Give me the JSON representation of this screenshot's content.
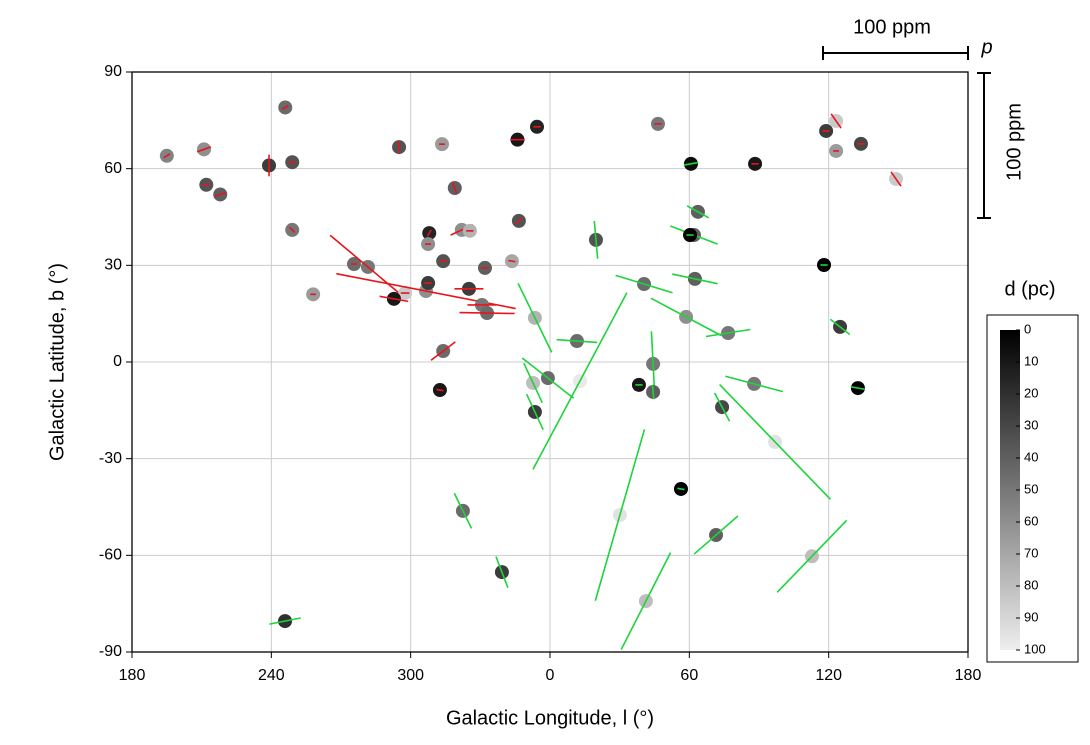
{
  "chart_data": {
    "type": "scatter",
    "xlabel": "Galactic Longitude, l (°)",
    "ylabel": "Galactic Latitude, b (°)",
    "xlim": [
      -180,
      180
    ],
    "ylim": [
      -90,
      90
    ],
    "xticks": [
      {
        "value": -180,
        "label": "180"
      },
      {
        "value": -120,
        "label": "240"
      },
      {
        "value": -60,
        "label": "300"
      },
      0,
      60,
      120,
      180
    ],
    "yticks": [
      -90,
      -60,
      -30,
      0,
      30,
      60,
      90
    ],
    "grid": true,
    "series": [
      {
        "color": "#e8141b",
        "x": [
          -165,
          -149,
          -148,
          -142,
          -121,
          -114,
          -111,
          -111,
          -102,
          -65,
          -46.5,
          -41,
          -52,
          -52.5,
          -38,
          -34.5,
          -14,
          -5.6,
          -13.4,
          -46,
          -16.4,
          -84.4,
          -78.4,
          -62.4,
          -67.2,
          -53.4,
          -52.5,
          -34.9,
          -28,
          -29.3,
          -27.1,
          -46,
          -47.4,
          88.3,
          118.9,
          123.2,
          123.2,
          133.9,
          149,
          46.5
        ],
        "y": [
          64,
          66,
          55,
          52,
          61,
          79,
          62,
          41,
          21,
          66.7,
          67.6,
          54,
          40,
          36.6,
          41,
          40.7,
          69,
          73,
          43.8,
          31.3,
          31.3,
          30.4,
          29.5,
          21.4,
          19.6,
          22,
          24.5,
          22.7,
          29.2,
          17.7,
          15.2,
          3.4,
          -8.7,
          61.5,
          71.7,
          74.8,
          65.5,
          67.7,
          56.8,
          73.9
        ],
        "d": [
          55,
          60,
          35,
          40,
          25,
          45,
          35,
          50,
          65,
          35,
          65,
          40,
          15,
          60,
          60,
          75,
          10,
          15,
          35,
          35,
          70,
          45,
          50,
          85,
          10,
          60,
          25,
          25,
          40,
          50,
          45,
          45,
          10,
          10,
          25,
          85,
          65,
          30,
          85,
          50
        ],
        "p": [
          5,
          10,
          5,
          8,
          15,
          5,
          5,
          5,
          4,
          8,
          4,
          8,
          5,
          4,
          17,
          5,
          10,
          5,
          6,
          5,
          5,
          4,
          68,
          6,
          20,
          126,
          5,
          20,
          5,
          20,
          38,
          21,
          5,
          5,
          5,
          12,
          4,
          5,
          12,
          5
        ],
        "pa": [
          60,
          70,
          80,
          70,
          0,
          60,
          90,
          135,
          90,
          0,
          90,
          160,
          30,
          90,
          65,
          90,
          90,
          90,
          45,
          90,
          100,
          90,
          130,
          90,
          100,
          101,
          90,
          90,
          90,
          90,
          91,
          53,
          100,
          90,
          90,
          145,
          90,
          90,
          145,
          90
        ]
      },
      {
        "color": "#1dd43c",
        "x": [
          -114.1,
          -6.5,
          11.6,
          -0.9,
          -7.3,
          -6.5,
          19.8,
          60.7,
          63.7,
          62,
          60.3,
          62.4,
          40.5,
          58.6,
          76.7,
          44.4,
          38.3,
          44.4,
          74.1,
          87.9,
          56.4,
          71.5,
          112.8,
          96.9,
          30.1,
          41.3,
          12.9,
          -37.5,
          -20.7,
          118,
          124.9,
          132.6
        ],
        "y": [
          -80.4,
          13.7,
          6.5,
          -5,
          -6.5,
          -15.5,
          37.9,
          61.5,
          46.6,
          39.4,
          39.4,
          25.8,
          24.2,
          14,
          9,
          -0.6,
          -7.1,
          -9.3,
          -14,
          -6.8,
          -39.4,
          -53.7,
          -60.3,
          -24.8,
          -47.5,
          -74.2,
          -5.9,
          -46.2,
          -65.2,
          30.1,
          10.9,
          -8.1
        ],
        "d": [
          20,
          75,
          45,
          45,
          80,
          25,
          35,
          5,
          40,
          40,
          0,
          40,
          45,
          60,
          50,
          50,
          10,
          40,
          30,
          50,
          0,
          40,
          80,
          95,
          95,
          80,
          98,
          45,
          25,
          0,
          25,
          0
        ],
        "p": [
          22,
          53,
          28,
          45,
          30,
          27,
          26,
          10,
          17,
          35,
          5,
          32,
          41,
          55,
          31,
          45,
          5,
          10,
          22,
          41,
          5,
          40,
          69,
          110,
          123,
          75,
          138,
          27,
          23,
          5,
          17,
          10
        ],
        "pa": [
          79,
          154,
          94,
          128,
          155,
          155,
          175,
          80,
          119,
          111,
          90,
          102,
          107,
          118,
          81,
          177,
          90,
          175,
          152,
          105,
          100,
          49,
          44,
          136,
          16,
          27,
          28,
          154,
          159,
          90,
          128,
          100
        ]
      }
    ],
    "colorbar": {
      "title": "d (pc)",
      "lim": [
        0,
        100
      ],
      "ticks": [
        0,
        10,
        20,
        30,
        40,
        50,
        60,
        70,
        80,
        90,
        100
      ],
      "colors": [
        "#000000",
        "#eeeeee"
      ]
    },
    "scale_bar": {
      "label": "100 ppm",
      "value": 100,
      "symbol": "p"
    }
  }
}
